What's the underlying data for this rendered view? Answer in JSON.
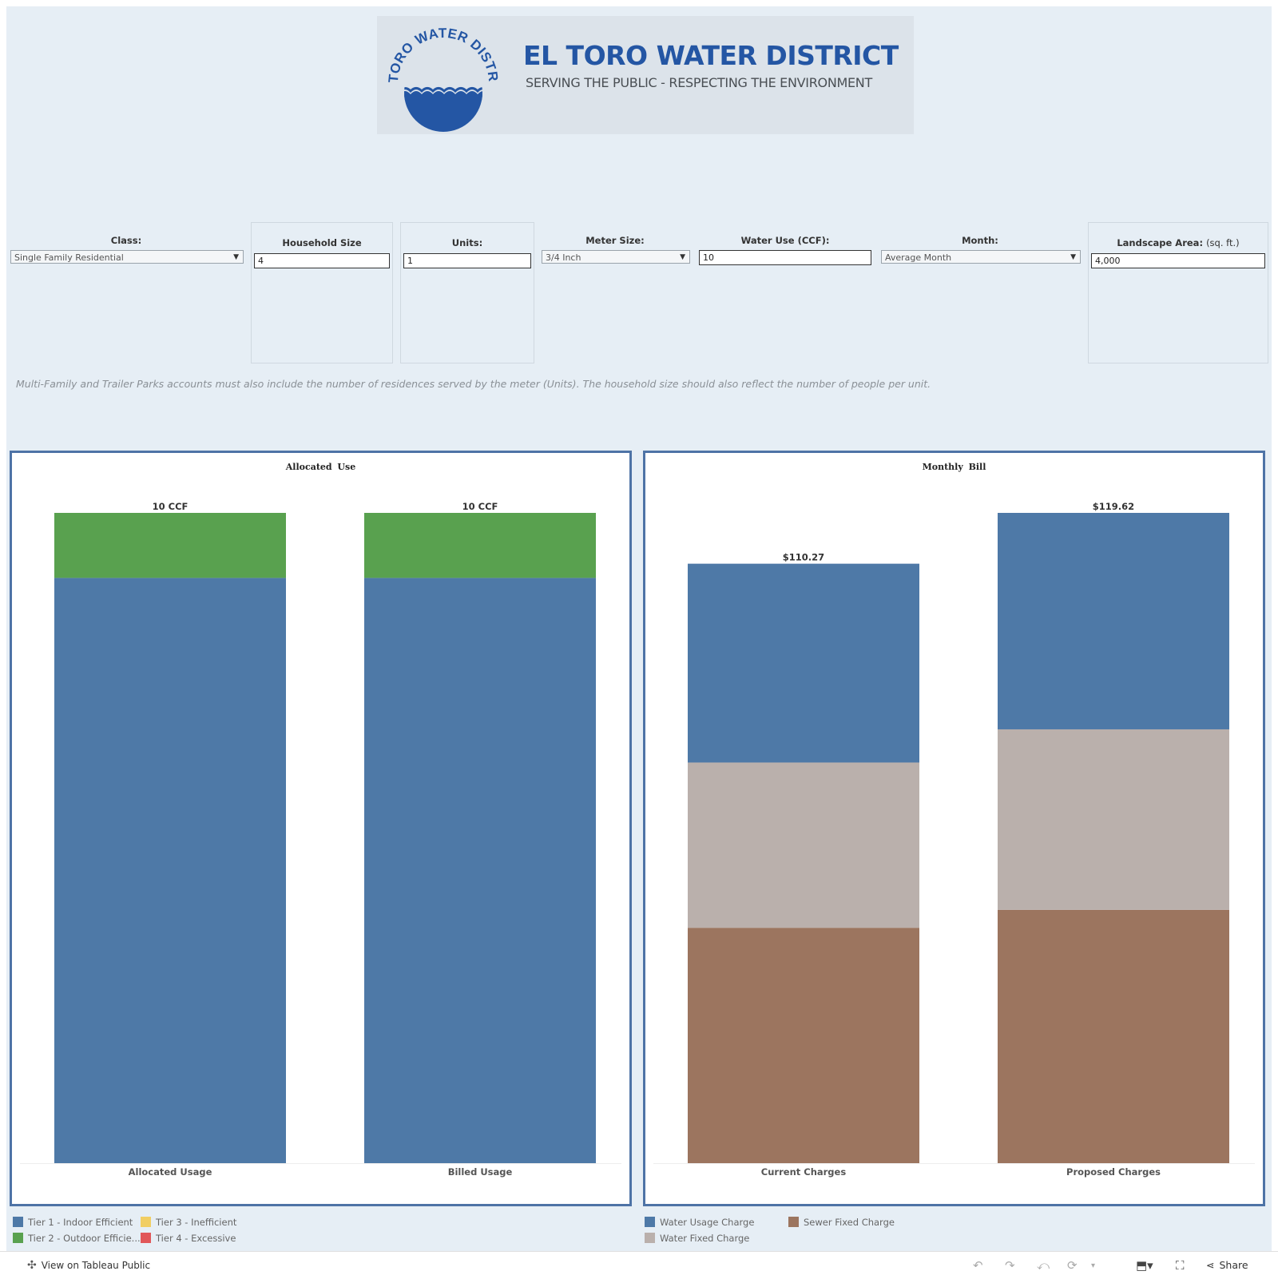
{
  "header": {
    "logo_text": "EL TORO WATER DISTRICT",
    "title": "EL TORO WATER DISTRICT",
    "subtitle": "SERVING THE PUBLIC - RESPECTING THE ENVIRONMENT"
  },
  "filters": {
    "class": {
      "label": "Class:",
      "value": "Single Family Residential"
    },
    "household_size": {
      "label": "Household Size",
      "value": "4"
    },
    "units": {
      "label": "Units:",
      "value": "1"
    },
    "meter_size": {
      "label": "Meter Size:",
      "value": "3/4 Inch"
    },
    "water_use": {
      "label": "Water Use (CCF):",
      "value": "10"
    },
    "month": {
      "label": "Month:",
      "value": "Average Month"
    },
    "landscape_area": {
      "label": "Landscape Area:",
      "unit": "(sq. ft.)",
      "value": "4,000"
    }
  },
  "note": "Multi-Family and Trailer Parks accounts must also include  the number of residences served by the meter (Units). The household size should also reflect the number of people per unit.",
  "chart_data": [
    {
      "type": "bar",
      "title": "Allocated  Use",
      "stacked": true,
      "categories": [
        "Allocated Usage",
        "Billed Usage"
      ],
      "series": [
        {
          "name": "Tier 1 - Indoor Efficient",
          "color": "#4e79a7",
          "values": [
            9,
            9
          ]
        },
        {
          "name": "Tier 2 - Outdoor Efficie...",
          "color": "#59a14f",
          "values": [
            1,
            1
          ]
        },
        {
          "name": "Tier 3 - Inefficient",
          "color": "#f1ce63",
          "values": [
            0,
            0
          ]
        },
        {
          "name": "Tier 4 - Excessive",
          "color": "#e15759",
          "values": [
            0,
            0
          ]
        }
      ],
      "totals": [
        10,
        10
      ],
      "total_labels": [
        "10 CCF",
        "10 CCF"
      ],
      "ylim": [
        0,
        10
      ]
    },
    {
      "type": "bar",
      "title": "Monthly  Bill",
      "stacked": true,
      "categories": [
        "Current Charges",
        "Proposed Charges"
      ],
      "series": [
        {
          "name": "Sewer Fixed Charge",
          "color": "#9c755f",
          "values": [
            43.3,
            46.6
          ]
        },
        {
          "name": "Water Fixed Charge",
          "color": "#bab0ac",
          "values": [
            30.4,
            33.2
          ]
        },
        {
          "name": "Water Usage Charge",
          "color": "#4e79a7",
          "values": [
            36.57,
            39.82
          ]
        }
      ],
      "totals": [
        110.27,
        119.62
      ],
      "total_labels": [
        "$110.27",
        "$119.62"
      ],
      "ylim": [
        0,
        119.62
      ]
    }
  ],
  "legends": {
    "left": [
      "Tier 1 - Indoor Efficient",
      "Tier 3 - Inefficient",
      "Tier 2 - Outdoor Efficie...",
      "Tier 4 - Excessive"
    ],
    "right": [
      "Water Usage Charge",
      "Sewer Fixed Charge",
      "Water Fixed Charge"
    ]
  },
  "colors": {
    "tier1": "#4e79a7",
    "tier2": "#59a14f",
    "tier3": "#f1ce63",
    "tier4": "#e15759",
    "water_usage": "#4e79a7",
    "sewer_fixed": "#9c755f",
    "water_fixed": "#bab0ac",
    "panel_border": "#4e73a6",
    "brand_blue": "#2456a4"
  },
  "footer": {
    "view_link": "View on Tableau Public",
    "share": "Share"
  }
}
